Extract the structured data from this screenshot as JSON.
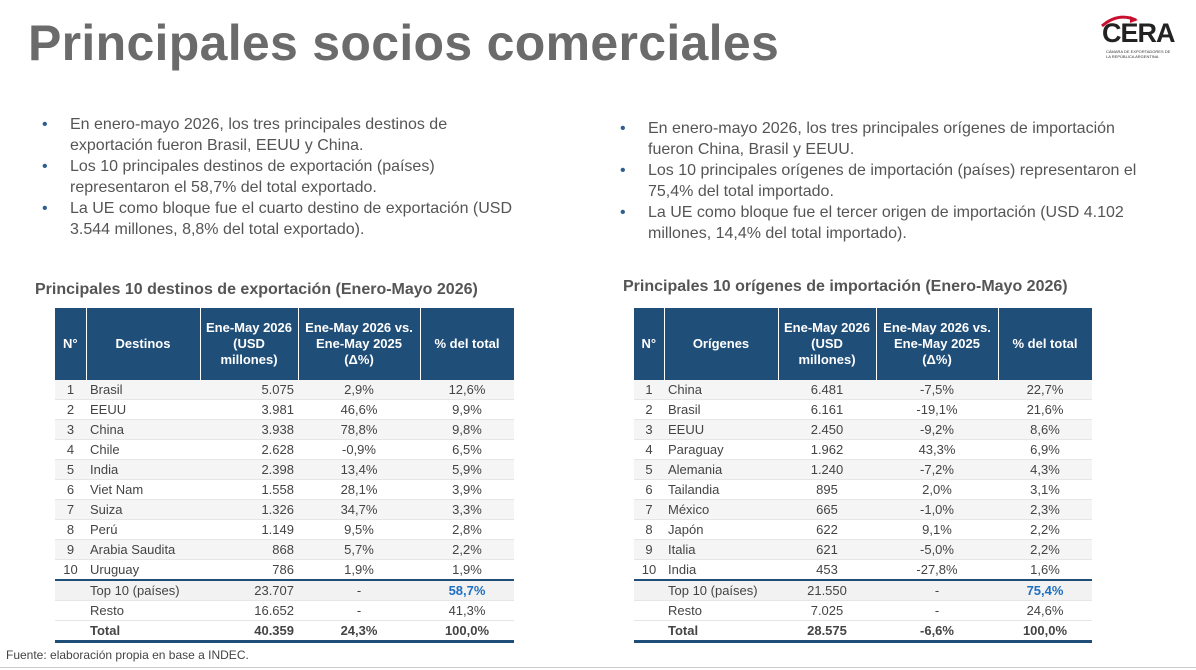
{
  "header": {
    "title": "Principales socios comerciales",
    "logo": {
      "name": "CERA",
      "subtitle": "CÁMARA DE EXPORTADORES DE LA REPÚBLICA ARGENTINA"
    }
  },
  "exports": {
    "bullets": [
      "En enero-mayo 2026, los tres principales destinos de exportación fueron Brasil, EEUU y China.",
      "Los 10 principales destinos de exportación (países) representaron el 58,7% del total exportado.",
      "La UE como bloque fue el cuarto destino de exportación (USD 3.544 millones, 8,8% del total exportado)."
    ],
    "table": {
      "title": "Principales 10 destinos de exportación (Enero-Mayo 2026)",
      "header": [
        "N°",
        "Destinos",
        "Ene-May 2026 (USD millones)",
        "Ene-May 2026 vs. Ene-May 2025 (Δ%)",
        "% del total"
      ],
      "rows": [
        [
          "1",
          "Brasil",
          "5.075",
          "2,9%",
          "12,6%"
        ],
        [
          "2",
          "EEUU",
          "3.981",
          "46,6%",
          "9,9%"
        ],
        [
          "3",
          "China",
          "3.938",
          "78,8%",
          "9,8%"
        ],
        [
          "4",
          "Chile",
          "2.628",
          "-0,9%",
          "6,5%"
        ],
        [
          "5",
          "India",
          "2.398",
          "13,4%",
          "5,9%"
        ],
        [
          "6",
          "Viet Nam",
          "1.558",
          "28,1%",
          "3,9%"
        ],
        [
          "7",
          "Suiza",
          "1.326",
          "34,7%",
          "3,3%"
        ],
        [
          "8",
          "Perú",
          "1.149",
          "9,5%",
          "2,8%"
        ],
        [
          "9",
          "Arabia Saudita",
          "868",
          "5,7%",
          "2,2%"
        ],
        [
          "10",
          "Uruguay",
          "786",
          "1,9%",
          "1,9%"
        ]
      ],
      "top10": [
        "Top 10 (países)",
        "23.707",
        "-",
        "58,7%"
      ],
      "resto": [
        "Resto",
        "16.652",
        "-",
        "41,3%"
      ],
      "total": [
        "Total",
        "40.359",
        "24,3%",
        "100,0%"
      ]
    }
  },
  "imports": {
    "bullets": [
      "En enero-mayo 2026, los tres principales orígenes de importación fueron China, Brasil y EEUU.",
      "Los 10 principales orígenes de importación (países) representaron el 75,4% del total importado.",
      "La UE como bloque fue el tercer origen de importación (USD 4.102 millones, 14,4% del total importado)."
    ],
    "table": {
      "title": "Principales 10 orígenes de importación (Enero-Mayo 2026)",
      "header": [
        "N°",
        "Orígenes",
        "Ene-May 2026 (USD millones)",
        "Ene-May 2026 vs. Ene-May 2025 (Δ%)",
        "% del total"
      ],
      "rows": [
        [
          "1",
          "China",
          "6.481",
          "-7,5%",
          "22,7%"
        ],
        [
          "2",
          "Brasil",
          "6.161",
          "-19,1%",
          "21,6%"
        ],
        [
          "3",
          "EEUU",
          "2.450",
          "-9,2%",
          "8,6%"
        ],
        [
          "4",
          "Paraguay",
          "1.962",
          "43,3%",
          "6,9%"
        ],
        [
          "5",
          "Alemania",
          "1.240",
          "-7,2%",
          "4,3%"
        ],
        [
          "6",
          "Tailandia",
          "895",
          "2,0%",
          "3,1%"
        ],
        [
          "7",
          "México",
          "665",
          "-1,0%",
          "2,3%"
        ],
        [
          "8",
          "Japón",
          "622",
          "9,1%",
          "2,2%"
        ],
        [
          "9",
          "Italia",
          "621",
          "-5,0%",
          "2,2%"
        ],
        [
          "10",
          "India",
          "453",
          "-27,8%",
          "1,6%"
        ]
      ],
      "top10": [
        "Top 10 (países)",
        "21.550",
        "-",
        "75,4%"
      ],
      "resto": [
        "Resto",
        "7.025",
        "-",
        "24,6%"
      ],
      "total": [
        "Total",
        "28.575",
        "-6,6%",
        "100,0%"
      ]
    }
  },
  "footer": {
    "source": "Fuente: elaboración propia en base a INDEC."
  }
}
